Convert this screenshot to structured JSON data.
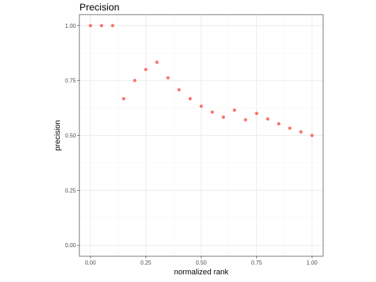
{
  "chart_data": {
    "type": "scatter",
    "title": "Precision",
    "xlabel": "normalized rank",
    "ylabel": "precision",
    "xlim": [
      -0.05,
      1.05
    ],
    "ylim": [
      -0.05,
      1.05
    ],
    "x_ticks": [
      0.0,
      0.25,
      0.5,
      0.75,
      1.0
    ],
    "x_tick_labels": [
      "0.00",
      "0.25",
      "0.50",
      "0.75",
      "1.00"
    ],
    "y_ticks": [
      0.0,
      0.25,
      0.5,
      0.75,
      1.0
    ],
    "y_tick_labels": [
      "0.00",
      "0.25",
      "0.50",
      "0.75",
      "1.00"
    ],
    "x_minor_ticks": [
      0.125,
      0.375,
      0.625,
      0.875
    ],
    "y_minor_ticks": [
      0.125,
      0.375,
      0.625,
      0.875
    ],
    "grid": true,
    "point_color": "#F8766D",
    "series": [
      {
        "x": [
          0.0,
          0.05,
          0.1,
          0.15,
          0.2,
          0.25,
          0.3,
          0.35,
          0.4,
          0.45,
          0.5,
          0.55,
          0.6,
          0.65,
          0.7,
          0.75,
          0.8,
          0.85,
          0.9,
          0.95,
          1.0
        ],
        "y": [
          1.0,
          1.0,
          1.0,
          0.667,
          0.75,
          0.8,
          0.833,
          0.762,
          0.708,
          0.667,
          0.633,
          0.606,
          0.583,
          0.615,
          0.571,
          0.6,
          0.575,
          0.553,
          0.533,
          0.516,
          0.5
        ]
      }
    ]
  }
}
